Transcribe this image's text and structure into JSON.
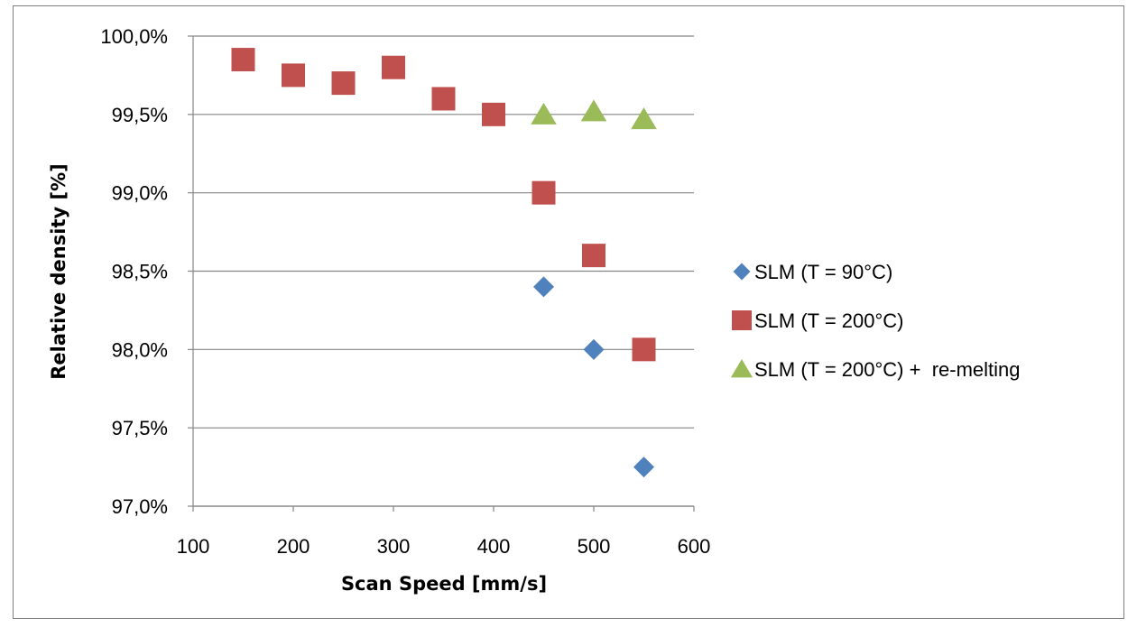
{
  "chart_data": {
    "type": "scatter",
    "title": "",
    "xlabel": "Scan Speed [mm/s]",
    "ylabel": "Relative density [%]",
    "xlim": [
      100,
      600
    ],
    "ylim": [
      97.0,
      100.0
    ],
    "x_ticks": [
      100,
      200,
      300,
      400,
      500,
      600
    ],
    "x_tick_labels": [
      "100",
      "200",
      "300",
      "400",
      "500",
      "600"
    ],
    "y_ticks": [
      97.0,
      97.5,
      98.0,
      98.5,
      99.0,
      99.5,
      100.0
    ],
    "y_tick_labels": [
      "97,0%",
      "97,5%",
      "98,0%",
      "98,5%",
      "99,0%",
      "99,5%",
      "100,0%"
    ],
    "grid": "horizontal",
    "legend_position": "right",
    "series": [
      {
        "name": "SLM (T = 90°C)",
        "marker": "diamond",
        "color": "#4f81bd",
        "x": [
          450,
          500,
          550
        ],
        "y": [
          98.4,
          98.0,
          97.25
        ]
      },
      {
        "name": "SLM (T = 200°C)",
        "marker": "square",
        "color": "#c0504d",
        "x": [
          150,
          200,
          250,
          300,
          350,
          400,
          450,
          500,
          550
        ],
        "y": [
          99.85,
          99.75,
          99.7,
          99.8,
          99.6,
          99.5,
          99.0,
          98.6,
          98.0
        ]
      },
      {
        "name": "SLM (T = 200°C) +  re-melting",
        "marker": "triangle",
        "color": "#9bbb59",
        "x": [
          450,
          500,
          550
        ],
        "y": [
          99.5,
          99.52,
          99.47
        ]
      }
    ]
  }
}
